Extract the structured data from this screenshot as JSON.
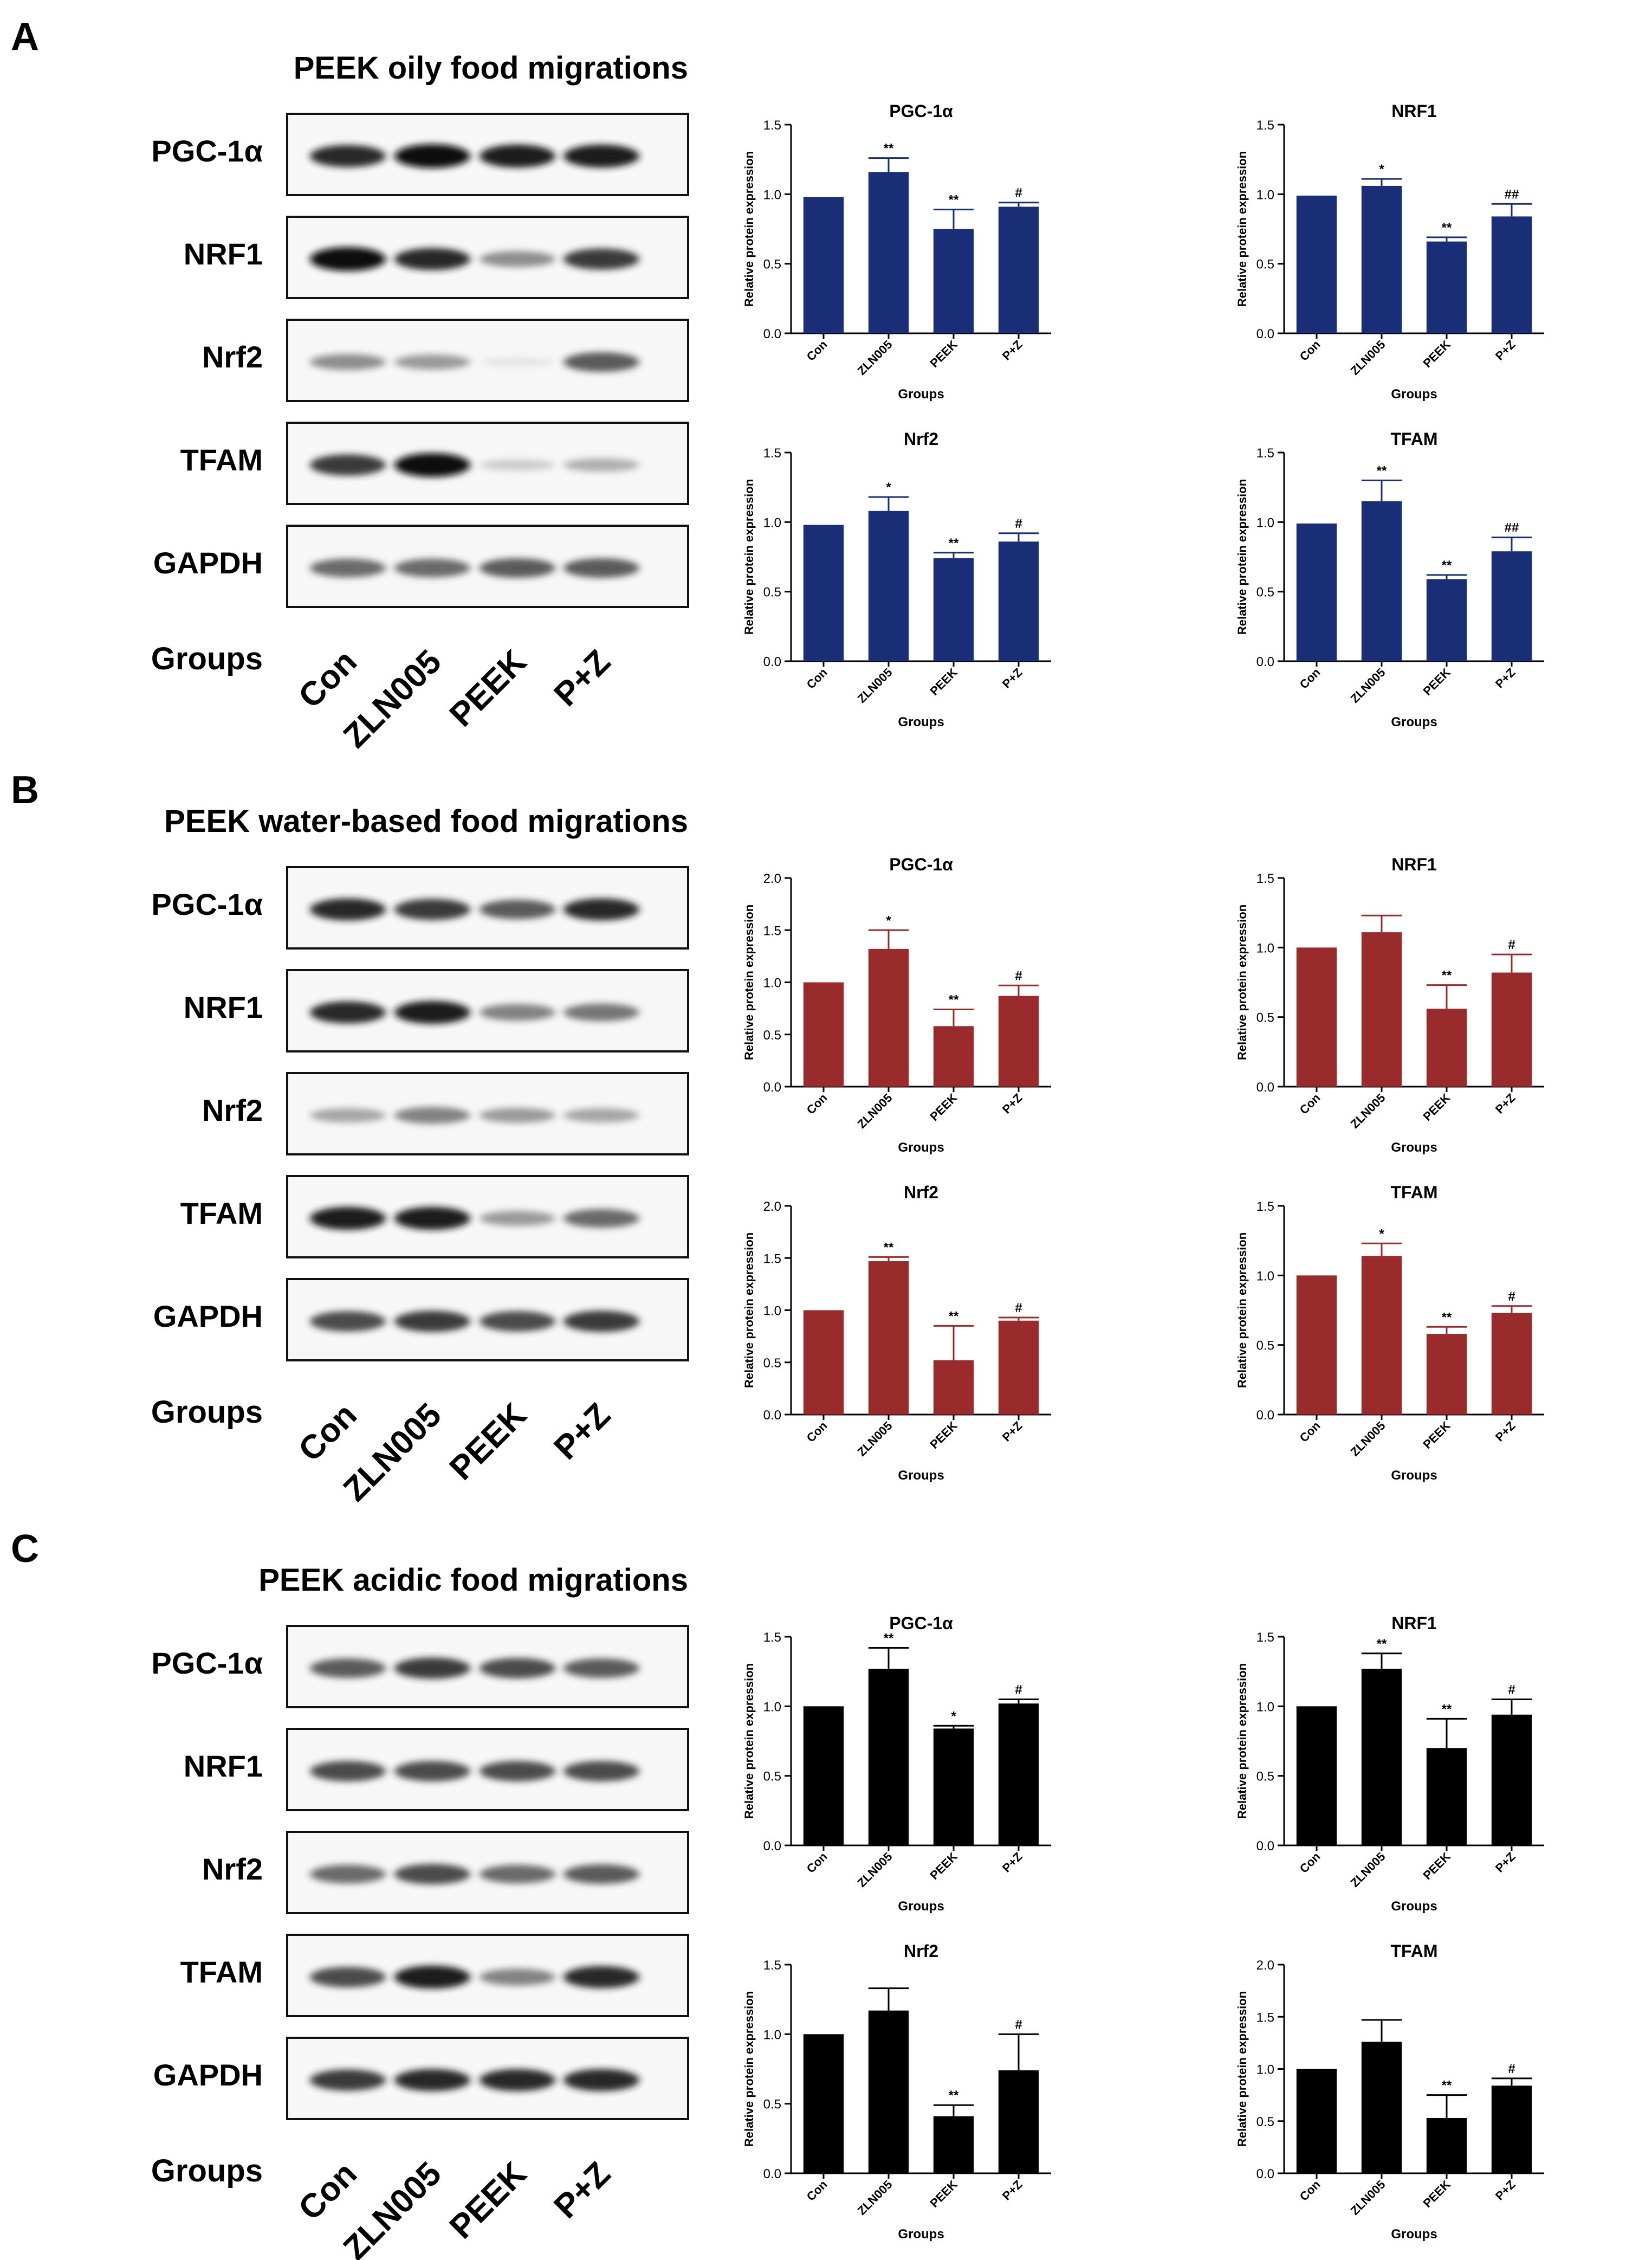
{
  "groups_label": "Groups",
  "lanes": [
    "Con",
    "ZLN005",
    "PEEK",
    "P+Z"
  ],
  "proteins": [
    "PGC-1α",
    "NRF1",
    "Nrf2",
    "TFAM",
    "GAPDH"
  ],
  "ylabel": "Relative protein expression",
  "xlabel": "Groups",
  "panels": [
    {
      "letter": "A",
      "title": "PEEK oily food migrations",
      "color": "#1a2e78",
      "blot": {
        "intensity": [
          [
            0.9,
            1.0,
            0.95,
            0.95
          ],
          [
            1.0,
            0.9,
            0.55,
            0.85
          ],
          [
            0.55,
            0.5,
            0.08,
            0.75
          ],
          [
            0.85,
            1.0,
            0.25,
            0.4
          ],
          [
            0.7,
            0.7,
            0.75,
            0.75
          ]
        ]
      },
      "chart_data": [
        {
          "type": "bar",
          "title": "PGC-1α",
          "xlabel": "Groups",
          "ylabel": "Relative protein expression",
          "categories": [
            "Con",
            "ZLN005",
            "PEEK",
            "P+Z"
          ],
          "values": [
            0.98,
            1.16,
            0.75,
            0.91
          ],
          "errors": [
            0,
            0.1,
            0.14,
            0.03
          ],
          "annotations": [
            "",
            "**",
            "**",
            "#"
          ],
          "ylim": [
            0,
            1.5
          ],
          "yticks": [
            "0.0",
            "0.5",
            "1.0",
            "1.5"
          ]
        },
        {
          "type": "bar",
          "title": "NRF1",
          "xlabel": "Groups",
          "ylabel": "Relative protein expression",
          "categories": [
            "Con",
            "ZLN005",
            "PEEK",
            "P+Z"
          ],
          "values": [
            0.99,
            1.06,
            0.66,
            0.84
          ],
          "errors": [
            0,
            0.05,
            0.03,
            0.09
          ],
          "annotations": [
            "",
            "*",
            "**",
            "##"
          ],
          "ylim": [
            0,
            1.5
          ],
          "yticks": [
            "0.0",
            "0.5",
            "1.0",
            "1.5"
          ]
        },
        {
          "type": "bar",
          "title": "Nrf2",
          "xlabel": "Groups",
          "ylabel": "Relative protein expression",
          "categories": [
            "Con",
            "ZLN005",
            "PEEK",
            "P+Z"
          ],
          "values": [
            0.98,
            1.08,
            0.74,
            0.86
          ],
          "errors": [
            0,
            0.1,
            0.04,
            0.06
          ],
          "annotations": [
            "",
            "*",
            "**",
            "#"
          ],
          "ylim": [
            0,
            1.5
          ],
          "yticks": [
            "0.0",
            "0.5",
            "1.0",
            "1.5"
          ]
        },
        {
          "type": "bar",
          "title": "TFAM",
          "xlabel": "Groups",
          "ylabel": "Relative protein expression",
          "categories": [
            "Con",
            "ZLN005",
            "PEEK",
            "P+Z"
          ],
          "values": [
            0.99,
            1.15,
            0.59,
            0.79
          ],
          "errors": [
            0,
            0.15,
            0.03,
            0.1
          ],
          "annotations": [
            "",
            "**",
            "**",
            "##"
          ],
          "ylim": [
            0,
            1.5
          ],
          "yticks": [
            "0.0",
            "0.5",
            "1.0",
            "1.5"
          ]
        }
      ]
    },
    {
      "letter": "B",
      "title": "PEEK water-based food migrations",
      "color": "#9a2b2c",
      "blot": {
        "intensity": [
          [
            0.9,
            0.85,
            0.75,
            0.9
          ],
          [
            0.9,
            0.95,
            0.6,
            0.65
          ],
          [
            0.45,
            0.6,
            0.5,
            0.45
          ],
          [
            0.95,
            0.95,
            0.5,
            0.7
          ],
          [
            0.8,
            0.85,
            0.8,
            0.85
          ]
        ]
      },
      "chart_data": [
        {
          "type": "bar",
          "title": "PGC-1α",
          "xlabel": "Groups",
          "ylabel": "Relative protein expression",
          "categories": [
            "Con",
            "ZLN005",
            "PEEK",
            "P+Z"
          ],
          "values": [
            1.0,
            1.32,
            0.58,
            0.87
          ],
          "errors": [
            0,
            0.18,
            0.16,
            0.1
          ],
          "annotations": [
            "",
            "*",
            "**",
            "#"
          ],
          "ylim": [
            0,
            2.0
          ],
          "yticks": [
            "0.0",
            "0.5",
            "1.0",
            "1.5",
            "2.0"
          ]
        },
        {
          "type": "bar",
          "title": "NRF1",
          "xlabel": "Groups",
          "ylabel": "Relative protein expression",
          "categories": [
            "Con",
            "ZLN005",
            "PEEK",
            "P+Z"
          ],
          "values": [
            1.0,
            1.11,
            0.56,
            0.82
          ],
          "errors": [
            0,
            0.12,
            0.17,
            0.13
          ],
          "annotations": [
            "",
            "",
            "**",
            "#"
          ],
          "ylim": [
            0,
            1.5
          ],
          "yticks": [
            "0.0",
            "0.5",
            "1.0",
            "1.5"
          ]
        },
        {
          "type": "bar",
          "title": "Nrf2",
          "xlabel": "Groups",
          "ylabel": "Relative protein expression",
          "categories": [
            "Con",
            "ZLN005",
            "PEEK",
            "P+Z"
          ],
          "values": [
            1.0,
            1.47,
            0.52,
            0.9
          ],
          "errors": [
            0,
            0.04,
            0.33,
            0.03
          ],
          "annotations": [
            "",
            "**",
            "**",
            "#"
          ],
          "ylim": [
            0,
            2.0
          ],
          "yticks": [
            "0.0",
            "0.5",
            "1.0",
            "1.5",
            "2.0"
          ]
        },
        {
          "type": "bar",
          "title": "TFAM",
          "xlabel": "Groups",
          "ylabel": "Relative protein expression",
          "categories": [
            "Con",
            "ZLN005",
            "PEEK",
            "P+Z"
          ],
          "values": [
            1.0,
            1.14,
            0.58,
            0.73
          ],
          "errors": [
            0,
            0.09,
            0.05,
            0.05
          ],
          "annotations": [
            "",
            "*",
            "**",
            "#"
          ],
          "ylim": [
            0,
            1.5
          ],
          "yticks": [
            "0.0",
            "0.5",
            "1.0",
            "1.5"
          ]
        }
      ]
    },
    {
      "letter": "C",
      "title": "PEEK acidic food migrations",
      "color": "#000000",
      "blot": {
        "intensity": [
          [
            0.75,
            0.85,
            0.8,
            0.75
          ],
          [
            0.8,
            0.8,
            0.8,
            0.8
          ],
          [
            0.7,
            0.8,
            0.7,
            0.75
          ],
          [
            0.8,
            0.95,
            0.6,
            0.9
          ],
          [
            0.85,
            0.9,
            0.9,
            0.9
          ]
        ]
      },
      "chart_data": [
        {
          "type": "bar",
          "title": "PGC-1α",
          "xlabel": "Groups",
          "ylabel": "Relative protein expression",
          "categories": [
            "Con",
            "ZLN005",
            "PEEK",
            "P+Z"
          ],
          "values": [
            1.0,
            1.27,
            0.84,
            1.02
          ],
          "errors": [
            0,
            0.15,
            0.02,
            0.03
          ],
          "annotations": [
            "",
            "**",
            "*",
            "#"
          ],
          "ylim": [
            0,
            1.5
          ],
          "yticks": [
            "0.0",
            "0.5",
            "1.0",
            "1.5"
          ]
        },
        {
          "type": "bar",
          "title": "NRF1",
          "xlabel": "Groups",
          "ylabel": "Relative protein expression",
          "categories": [
            "Con",
            "ZLN005",
            "PEEK",
            "P+Z"
          ],
          "values": [
            1.0,
            1.27,
            0.7,
            0.94
          ],
          "errors": [
            0,
            0.11,
            0.21,
            0.11
          ],
          "annotations": [
            "",
            "**",
            "**",
            "#"
          ],
          "ylim": [
            0,
            1.5
          ],
          "yticks": [
            "0.0",
            "0.5",
            "1.0",
            "1.5"
          ]
        },
        {
          "type": "bar",
          "title": "Nrf2",
          "xlabel": "Groups",
          "ylabel": "Relative protein expression",
          "categories": [
            "Con",
            "ZLN005",
            "PEEK",
            "P+Z"
          ],
          "values": [
            1.0,
            1.17,
            0.41,
            0.74
          ],
          "errors": [
            0,
            0.16,
            0.08,
            0.26
          ],
          "annotations": [
            "",
            "",
            "**",
            "#"
          ],
          "ylim": [
            0,
            1.5
          ],
          "yticks": [
            "0.0",
            "0.5",
            "1.0",
            "1.5"
          ]
        },
        {
          "type": "bar",
          "title": "TFAM",
          "xlabel": "Groups",
          "ylabel": "Relative protein expression",
          "categories": [
            "Con",
            "ZLN005",
            "PEEK",
            "P+Z"
          ],
          "values": [
            1.0,
            1.26,
            0.53,
            0.84
          ],
          "errors": [
            0,
            0.21,
            0.22,
            0.07
          ],
          "annotations": [
            "",
            "",
            "**",
            "#"
          ],
          "ylim": [
            0,
            2.0
          ],
          "yticks": [
            "0.0",
            "0.5",
            "1.0",
            "1.5",
            "2.0"
          ]
        }
      ]
    }
  ]
}
